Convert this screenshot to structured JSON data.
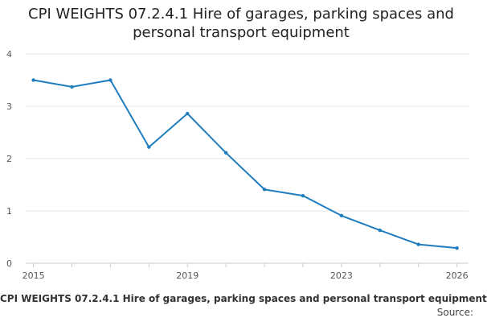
{
  "chart_data": {
    "type": "line",
    "title_lines": [
      "CPI WEIGHTS 07.2.4.1 Hire of garages, parking spaces and",
      "personal transport equipment"
    ],
    "x": [
      2015,
      2016,
      2017,
      2018,
      2019,
      2020,
      2021,
      2022,
      2023,
      2024,
      2025,
      2026
    ],
    "values": [
      3.5,
      3.37,
      3.5,
      2.22,
      2.86,
      2.11,
      1.41,
      1.29,
      0.91,
      0.63,
      0.36,
      0.29
    ],
    "x_tick_labels": [
      "2015",
      "2019",
      "2023",
      "2026"
    ],
    "x_ticks": [
      2015,
      2019,
      2023,
      2026
    ],
    "y_ticks": [
      0,
      1,
      2,
      3,
      4
    ],
    "ylim": [
      0,
      4
    ],
    "xlim": [
      2014.8,
      2026.3
    ],
    "grid": "horizontal",
    "legend": false,
    "line_color": "#1f7dbf",
    "grid_color": "#e6e6e6"
  },
  "footer": {
    "caption": "CPI WEIGHTS 07.2.4.1 Hire of garages, parking spaces and personal transport equipment",
    "source": "Source:"
  }
}
